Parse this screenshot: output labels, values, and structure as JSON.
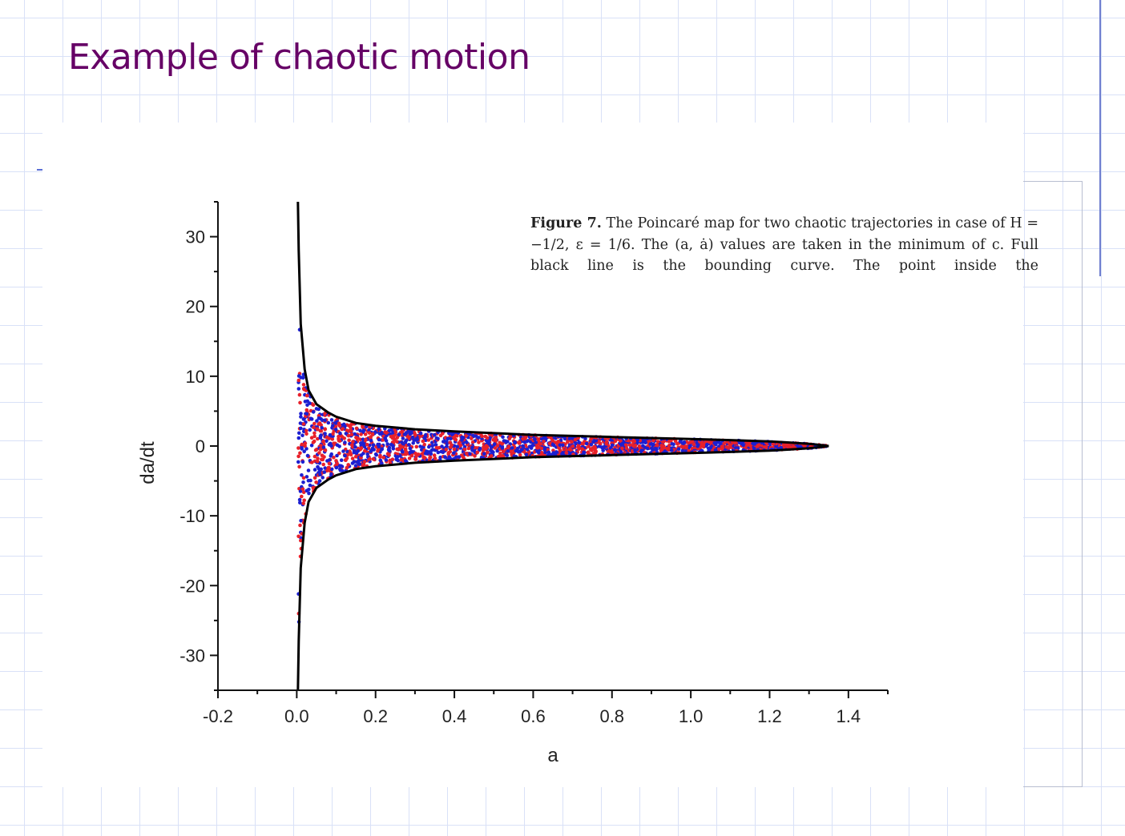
{
  "slide": {
    "title": "Example of chaotic motion"
  },
  "caption": {
    "label": "Figure 7.",
    "lines": [
      "The Poincaré map for two chaotic trajectories in case",
      "of H = −1/2, ε = 1/6. The (a, ȧ) values are taken in the minimum",
      "of c. Full black line is the bounding curve. The point inside the"
    ]
  },
  "chart_data": {
    "type": "scatter",
    "xlabel": "a",
    "ylabel": "da/dt",
    "xlim": [
      -0.2,
      1.5
    ],
    "ylim": [
      -35,
      35
    ],
    "x_ticks": [
      -0.2,
      0.0,
      0.2,
      0.4,
      0.6,
      0.8,
      1.0,
      1.2,
      1.4
    ],
    "x_tick_labels": [
      "-0.2",
      "0.0",
      "0.2",
      "0.4",
      "0.6",
      "0.8",
      "1.0",
      "1.2",
      "1.4"
    ],
    "y_ticks": [
      -30,
      -20,
      -10,
      0,
      10,
      20,
      30
    ],
    "y_tick_labels": [
      "-30",
      "-20",
      "-10",
      "0",
      "10",
      "20",
      "30"
    ],
    "grid": false,
    "bounding_curve": {
      "color": "#000000",
      "x": [
        0.003,
        0.005,
        0.01,
        0.02,
        0.03,
        0.05,
        0.08,
        0.1,
        0.15,
        0.2,
        0.3,
        0.4,
        0.5,
        0.6,
        0.7,
        0.8,
        0.9,
        1.0,
        1.1,
        1.2,
        1.25,
        1.3,
        1.33,
        1.35
      ],
      "y": [
        35.0,
        28.0,
        17.5,
        11.0,
        8.0,
        6.0,
        4.8,
        4.2,
        3.3,
        2.9,
        2.4,
        2.1,
        1.85,
        1.6,
        1.45,
        1.3,
        1.15,
        1.0,
        0.85,
        0.65,
        0.5,
        0.32,
        0.15,
        0.0
      ]
    },
    "series": [
      {
        "color": "#e8202a"
      },
      {
        "color": "#1c1fd1"
      }
    ]
  }
}
